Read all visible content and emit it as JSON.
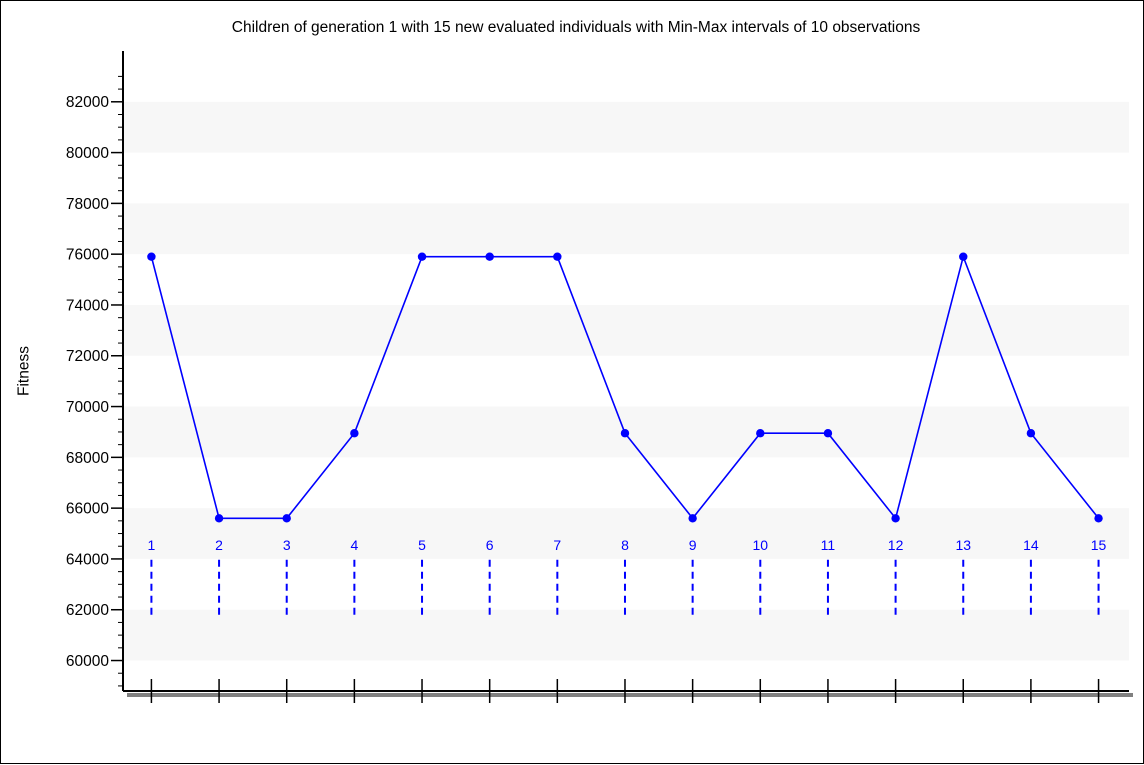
{
  "chart_data": {
    "type": "line",
    "title": "Children of generation 1 with 15 new evaluated individuals with Min-Max intervals of 10 observations",
    "xlabel": "",
    "ylabel": "Fitness",
    "x": [
      1,
      2,
      3,
      4,
      5,
      6,
      7,
      8,
      9,
      10,
      11,
      12,
      13,
      14,
      15
    ],
    "point_labels": [
      "1",
      "2",
      "3",
      "4",
      "5",
      "6",
      "7",
      "8",
      "9",
      "10",
      "11",
      "12",
      "13",
      "14",
      "15"
    ],
    "series": [
      {
        "values": [
          75900,
          65600,
          65600,
          68950,
          75900,
          75900,
          75900,
          68950,
          65600,
          68950,
          68950,
          65600,
          75900,
          68950,
          65600
        ],
        "interval_low": [
          61800,
          61800,
          61800,
          61800,
          61800,
          61800,
          61800,
          61800,
          61800,
          61800,
          61800,
          61800,
          61800,
          61800,
          61800
        ],
        "interval_high": [
          64100,
          64100,
          64100,
          64100,
          64100,
          64100,
          64100,
          64100,
          64100,
          64100,
          64100,
          64100,
          64100,
          64100,
          64100
        ]
      }
    ],
    "yticks": [
      60000,
      62000,
      64000,
      66000,
      68000,
      70000,
      72000,
      74000,
      76000,
      78000,
      80000,
      82000
    ],
    "ytick_labels": [
      "60000",
      "62000",
      "64000",
      "66000",
      "68000",
      "70000",
      "72000",
      "74000",
      "76000",
      "78000",
      "80000",
      "82000"
    ],
    "ylim": [
      58800,
      84000
    ],
    "xlim": [
      0.58,
      15.45
    ],
    "grid": "alternating horizontal bands",
    "legend": "none",
    "colors": {
      "series": "#0000ff",
      "band": "#f7f7f7",
      "axis": "#000000",
      "shadow": "#808080"
    }
  }
}
